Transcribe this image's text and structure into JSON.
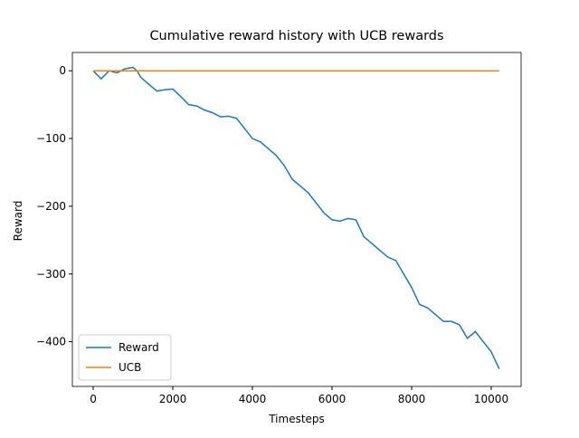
{
  "chart_data": {
    "type": "line",
    "title": "Cumulative reward history with UCB rewards",
    "x_label": "Timesteps",
    "y_label": "Reward",
    "x": [
      0,
      200,
      400,
      600,
      800,
      1000,
      1100,
      1200,
      1400,
      1600,
      1800,
      2000,
      2200,
      2400,
      2600,
      2800,
      3000,
      3200,
      3400,
      3600,
      3800,
      4000,
      4200,
      4400,
      4600,
      4800,
      5000,
      5200,
      5400,
      5600,
      5800,
      6000,
      6200,
      6400,
      6600,
      6800,
      7000,
      7200,
      7400,
      7600,
      7800,
      8000,
      8200,
      8400,
      8600,
      8800,
      9000,
      9200,
      9400,
      9600,
      9800,
      10000,
      10200
    ],
    "series": [
      {
        "name": "Reward",
        "color": "#1f77b4",
        "values": [
          0,
          -12,
          0,
          -3,
          3,
          5,
          0,
          -10,
          -20,
          -30,
          -28,
          -27,
          -38,
          -50,
          -52,
          -58,
          -62,
          -68,
          -67,
          -70,
          -85,
          -100,
          -105,
          -115,
          -125,
          -140,
          -160,
          -170,
          -180,
          -195,
          -210,
          -220,
          -222,
          -218,
          -220,
          -245,
          -255,
          -265,
          -275,
          -280,
          -300,
          -320,
          -345,
          -350,
          -360,
          -370,
          -370,
          -375,
          -395,
          -385,
          -400,
          -415,
          -440
        ]
      },
      {
        "name": "UCB",
        "color": "#ff7f0e",
        "values": [
          0,
          0,
          0,
          0,
          0,
          0,
          0,
          0,
          0,
          0,
          0,
          0,
          0,
          0,
          0,
          0,
          0,
          0,
          0,
          0,
          0,
          0,
          0,
          0,
          0,
          0,
          0,
          0,
          0,
          0,
          0,
          0,
          0,
          0,
          0,
          0,
          0,
          0,
          0,
          0,
          0,
          0,
          0,
          0,
          0,
          0,
          0,
          0,
          0,
          0,
          0,
          0,
          0
        ]
      }
    ],
    "xlim": [
      -523,
      10750
    ],
    "ylim": [
      -466,
      27
    ],
    "xticks": [
      0,
      2000,
      4000,
      6000,
      8000,
      10000
    ],
    "yticks": [
      {
        "value": -400,
        "label": "−400"
      },
      {
        "value": -300,
        "label": "−300"
      },
      {
        "value": -200,
        "label": "−200"
      },
      {
        "value": -100,
        "label": "−100"
      },
      0
    ],
    "legend": "lower left"
  }
}
